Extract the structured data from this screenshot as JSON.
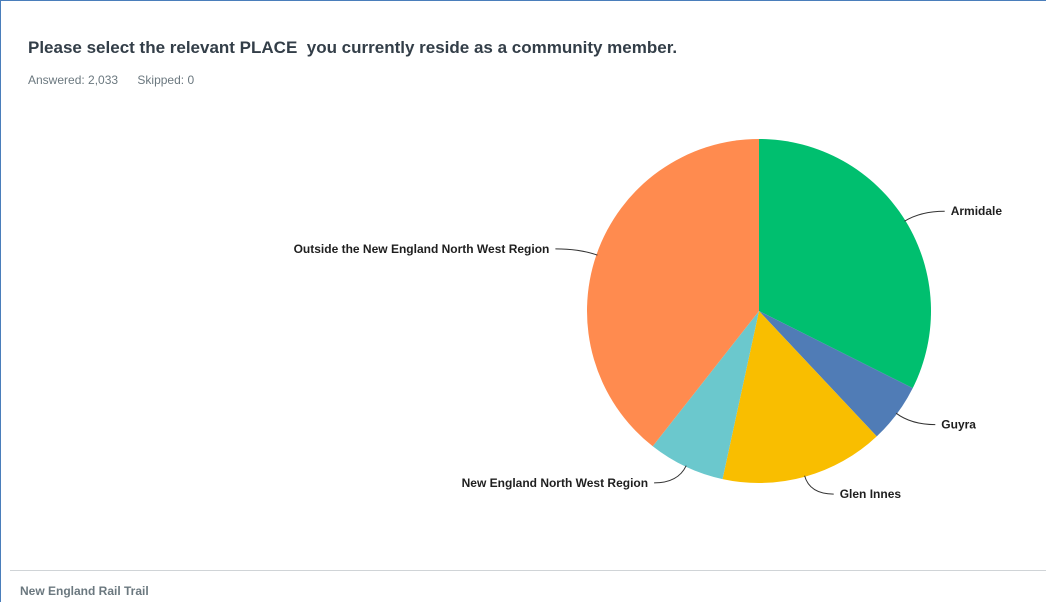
{
  "question": {
    "title": "Please select the relevant PLACE  you currently reside as a community member.",
    "answered": "Answered: 2,033",
    "skipped": "Skipped: 0"
  },
  "chart_data": {
    "type": "pie",
    "categories": [
      "Armidale",
      "Guyra",
      "Glen Innes",
      "New England North West Region",
      "Outside the New England North West Region"
    ],
    "values": [
      32.4,
      5.6,
      15.4,
      7.2,
      39.4
    ],
    "unit": "%",
    "colors": [
      "#00bf6f",
      "#507cb6",
      "#f9be00",
      "#6bc8cd",
      "#ff8b4f"
    ]
  },
  "next_section": {
    "title": "New England Rail Trail"
  }
}
